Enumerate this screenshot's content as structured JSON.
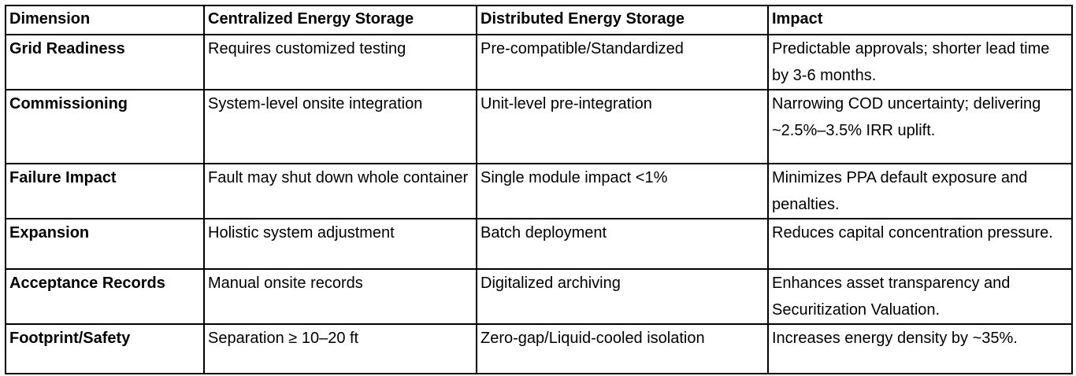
{
  "table": {
    "header": [
      "Dimension",
      "Centralized Energy Storage",
      "Distributed Energy Storage",
      "Impact"
    ],
    "rows": [
      [
        "Grid Readiness",
        "Requires customized testing",
        "Pre-compatible/Standardized",
        "Predictable approvals; shorter lead time by 3-6 months."
      ],
      [
        "Commissioning",
        "System-level onsite integration",
        "Unit-level pre-integration",
        "Narrowing COD uncertainty; delivering ~2.5%–3.5% IRR uplift."
      ],
      [
        "Failure Impact",
        "Fault may shut down whole container",
        "Single module impact <1%",
        "Minimizes PPA default exposure and penalties."
      ],
      [
        "Expansion",
        "Holistic system adjustment",
        "Batch deployment",
        "Reduces capital concentration pressure."
      ],
      [
        "Acceptance Records",
        "Manual onsite records",
        "Digitalized archiving",
        "Enhances asset transparency and Securitization Valuation."
      ],
      [
        "Footprint/Safety",
        "Separation ≥ 10–20 ft",
        "Zero-gap/Liquid-cooled isolation",
        "Increases energy density by ~35%."
      ]
    ]
  }
}
